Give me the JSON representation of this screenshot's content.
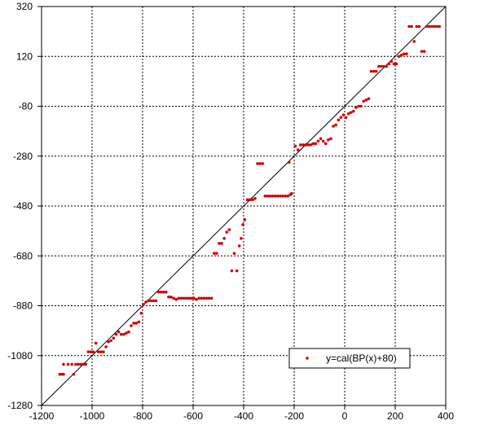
{
  "chart_data": {
    "type": "scatter",
    "xlim": [
      -1200,
      400
    ],
    "ylim": [
      -1280,
      320
    ],
    "x_ticks": [
      -1200,
      -1000,
      -800,
      -600,
      -400,
      -200,
      0,
      200,
      400
    ],
    "y_ticks": [
      -1280,
      -1080,
      -880,
      -680,
      -480,
      -280,
      -80,
      120,
      320
    ],
    "x_tick_labels": [
      "-1200",
      "-1000",
      "-800",
      "-600",
      "-400",
      "-200",
      "0",
      "200",
      "400"
    ],
    "y_tick_labels": [
      "-1280",
      "-1080",
      "-880",
      "-680",
      "-480",
      "-280",
      "-80",
      "120",
      "320"
    ],
    "grid": true,
    "legend_position": "bottom-right",
    "reference_line": {
      "from": [
        -1200,
        -1280
      ],
      "to": [
        400,
        320
      ],
      "color": "#000000"
    },
    "series": [
      {
        "name": "y=cal(BP(x)+80)",
        "color": "#d40000",
        "points": [
          [
            -1128,
            -1155
          ],
          [
            -1120,
            -1155
          ],
          [
            -1113,
            -1155
          ],
          [
            -1113,
            -1115
          ],
          [
            -1095,
            -1115
          ],
          [
            -1080,
            -1115
          ],
          [
            -1073,
            -1155
          ],
          [
            -1065,
            -1115
          ],
          [
            -1055,
            -1115
          ],
          [
            -1045,
            -1115
          ],
          [
            -1035,
            -1115
          ],
          [
            -1025,
            -1115
          ],
          [
            -1015,
            -1065
          ],
          [
            -1005,
            -1065
          ],
          [
            -995,
            -1065
          ],
          [
            -985,
            -1030
          ],
          [
            -975,
            -1065
          ],
          [
            -965,
            -1065
          ],
          [
            -955,
            -1065
          ],
          [
            -945,
            -1045
          ],
          [
            -935,
            -1025
          ],
          [
            -925,
            -1020
          ],
          [
            -915,
            -1010
          ],
          [
            -905,
            -995
          ],
          [
            -895,
            -985
          ],
          [
            -885,
            -995
          ],
          [
            -875,
            -995
          ],
          [
            -865,
            -990
          ],
          [
            -855,
            -985
          ],
          [
            -845,
            -960
          ],
          [
            -835,
            -950
          ],
          [
            -825,
            -950
          ],
          [
            -815,
            -945
          ],
          [
            -805,
            -910
          ],
          [
            -797,
            -875
          ],
          [
            -787,
            -865
          ],
          [
            -777,
            -860
          ],
          [
            -767,
            -860
          ],
          [
            -757,
            -860
          ],
          [
            -747,
            -860
          ],
          [
            -737,
            -825
          ],
          [
            -727,
            -825
          ],
          [
            -717,
            -825
          ],
          [
            -707,
            -825
          ],
          [
            -697,
            -845
          ],
          [
            -687,
            -845
          ],
          [
            -677,
            -850
          ],
          [
            -667,
            -855
          ],
          [
            -657,
            -850
          ],
          [
            -647,
            -850
          ],
          [
            -637,
            -850
          ],
          [
            -627,
            -850
          ],
          [
            -617,
            -850
          ],
          [
            -607,
            -850
          ],
          [
            -597,
            -850
          ],
          [
            -587,
            -855
          ],
          [
            -577,
            -850
          ],
          [
            -567,
            -850
          ],
          [
            -557,
            -850
          ],
          [
            -547,
            -850
          ],
          [
            -537,
            -850
          ],
          [
            -527,
            -850
          ],
          [
            -517,
            -670
          ],
          [
            -507,
            -670
          ],
          [
            -497,
            -630
          ],
          [
            -487,
            -630
          ],
          [
            -477,
            -610
          ],
          [
            -467,
            -585
          ],
          [
            -457,
            -575
          ],
          [
            -447,
            -740
          ],
          [
            -437,
            -670
          ],
          [
            -427,
            -740
          ],
          [
            -417,
            -640
          ],
          [
            -410,
            -610
          ],
          [
            -403,
            -555
          ],
          [
            -396,
            -535
          ],
          [
            -385,
            -455
          ],
          [
            -375,
            -455
          ],
          [
            -365,
            -455
          ],
          [
            -355,
            -450
          ],
          [
            -345,
            -310
          ],
          [
            -335,
            -310
          ],
          [
            -325,
            -310
          ],
          [
            -315,
            -440
          ],
          [
            -305,
            -440
          ],
          [
            -295,
            -440
          ],
          [
            -285,
            -440
          ],
          [
            -275,
            -440
          ],
          [
            -265,
            -440
          ],
          [
            -255,
            -440
          ],
          [
            -245,
            -440
          ],
          [
            -235,
            -440
          ],
          [
            -225,
            -440
          ],
          [
            -220,
            -305
          ],
          [
            -215,
            -435
          ],
          [
            -210,
            -430
          ],
          [
            -195,
            -240
          ],
          [
            -185,
            -255
          ],
          [
            -175,
            -235
          ],
          [
            -165,
            -235
          ],
          [
            -155,
            -235
          ],
          [
            -145,
            -235
          ],
          [
            -135,
            -235
          ],
          [
            -125,
            -230
          ],
          [
            -115,
            -230
          ],
          [
            -105,
            -220
          ],
          [
            -95,
            -210
          ],
          [
            -85,
            -220
          ],
          [
            -75,
            -230
          ],
          [
            -65,
            -215
          ],
          [
            -55,
            -210
          ],
          [
            -45,
            -160
          ],
          [
            -35,
            -155
          ],
          [
            -25,
            -135
          ],
          [
            -15,
            -125
          ],
          [
            -5,
            -115
          ],
          [
            5,
            -125
          ],
          [
            15,
            -110
          ],
          [
            25,
            -105
          ],
          [
            35,
            -100
          ],
          [
            45,
            -85
          ],
          [
            55,
            -80
          ],
          [
            65,
            -80
          ],
          [
            75,
            -60
          ],
          [
            85,
            -55
          ],
          [
            95,
            -50
          ],
          [
            105,
            60
          ],
          [
            115,
            60
          ],
          [
            125,
            60
          ],
          [
            135,
            80
          ],
          [
            145,
            80
          ],
          [
            155,
            80
          ],
          [
            165,
            80
          ],
          [
            175,
            90
          ],
          [
            185,
            100
          ],
          [
            195,
            90
          ],
          [
            205,
            90
          ],
          [
            215,
            120
          ],
          [
            225,
            125
          ],
          [
            235,
            130
          ],
          [
            245,
            130
          ],
          [
            255,
            240
          ],
          [
            265,
            240
          ],
          [
            275,
            180
          ],
          [
            285,
            240
          ],
          [
            295,
            240
          ],
          [
            305,
            140
          ],
          [
            315,
            140
          ],
          [
            325,
            240
          ],
          [
            335,
            240
          ],
          [
            345,
            240
          ],
          [
            355,
            240
          ],
          [
            365,
            240
          ],
          [
            375,
            240
          ]
        ]
      }
    ]
  }
}
